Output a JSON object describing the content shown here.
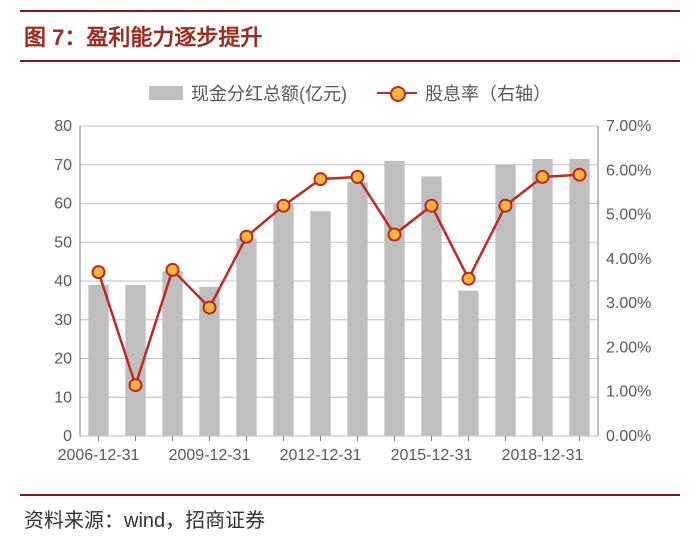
{
  "chart": {
    "title_prefix": "图 7：",
    "title": "盈利能力逐步提升",
    "source_label": "资料来源：",
    "source_text": "wind，招商证券",
    "legend_bar": "现金分红总额(亿元)",
    "legend_line": "股息率（右轴）",
    "type": "bar+line-dual-axis",
    "bar_color": "#bfbfbf",
    "line_color": "#c3281f",
    "marker_fill": "#f6b73c",
    "marker_stroke": "#c3281f",
    "grid_color": "#bfbfbf",
    "axis_color": "#808080",
    "tick_font_color": "#595959",
    "tick_font_size": 16,
    "y_left": {
      "min": 0,
      "max": 80,
      "step": 10,
      "labels": [
        "0",
        "10",
        "20",
        "30",
        "40",
        "50",
        "60",
        "70",
        "80"
      ]
    },
    "y_right": {
      "min": 0,
      "max": 7,
      "step": 1,
      "labels": [
        "0.00%",
        "1.00%",
        "2.00%",
        "3.00%",
        "4.00%",
        "5.00%",
        "6.00%",
        "7.00%"
      ]
    },
    "x_ticks": [
      "2006-12-31",
      "2009-12-31",
      "2012-12-31",
      "2015-12-31",
      "2018-12-31"
    ],
    "x_tick_indices": [
      0,
      3,
      6,
      9,
      12
    ],
    "bar_values": [
      39,
      39,
      42.5,
      38.5,
      51,
      60,
      58,
      65.5,
      71,
      67,
      37.5,
      70,
      71.5,
      71.5
    ],
    "line_values": [
      3.7,
      1.15,
      3.75,
      2.9,
      4.5,
      5.2,
      5.8,
      5.85,
      4.55,
      5.2,
      3.55,
      5.2,
      5.85,
      5.9
    ],
    "n_points": 14,
    "bar_width_ratio": 0.55
  }
}
